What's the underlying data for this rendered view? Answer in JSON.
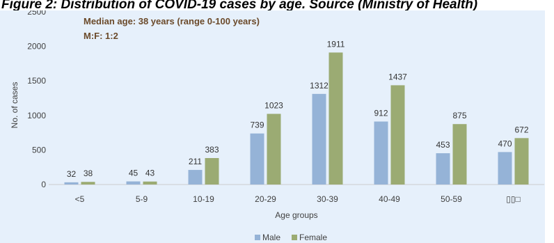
{
  "figure": {
    "caption": "Figure 2: Distribution of COVID-19 cases by age. Source (Ministry of Health)"
  },
  "colors": {
    "male": "#95b3d7",
    "female": "#9bab73",
    "panel_background": "#e6f0fb",
    "axis_text": "#404040",
    "annotation_text": "#6b4a2a"
  },
  "chart_data": {
    "type": "bar",
    "categories": [
      "<5",
      "5-9",
      "10-19",
      "20-29",
      "30-39",
      "40-49",
      "50-59",
      "▯▯□"
    ],
    "series": [
      {
        "name": "Male",
        "values": [
          32,
          45,
          211,
          739,
          1312,
          912,
          453,
          470
        ]
      },
      {
        "name": "Female",
        "values": [
          38,
          43,
          383,
          1023,
          1911,
          1437,
          875,
          672
        ]
      }
    ],
    "yticks": [
      0,
      500,
      1000,
      1500,
      2000,
      2500
    ],
    "ylim": [
      0,
      2500
    ],
    "xlabel": "Age groups",
    "ylabel": "No. of cases",
    "annotations": [
      "Median age: 38 years (range 0-100 years)",
      "M:F: 1:2"
    ],
    "legend_position": "bottom-center",
    "grid": false,
    "data_labels": true
  }
}
